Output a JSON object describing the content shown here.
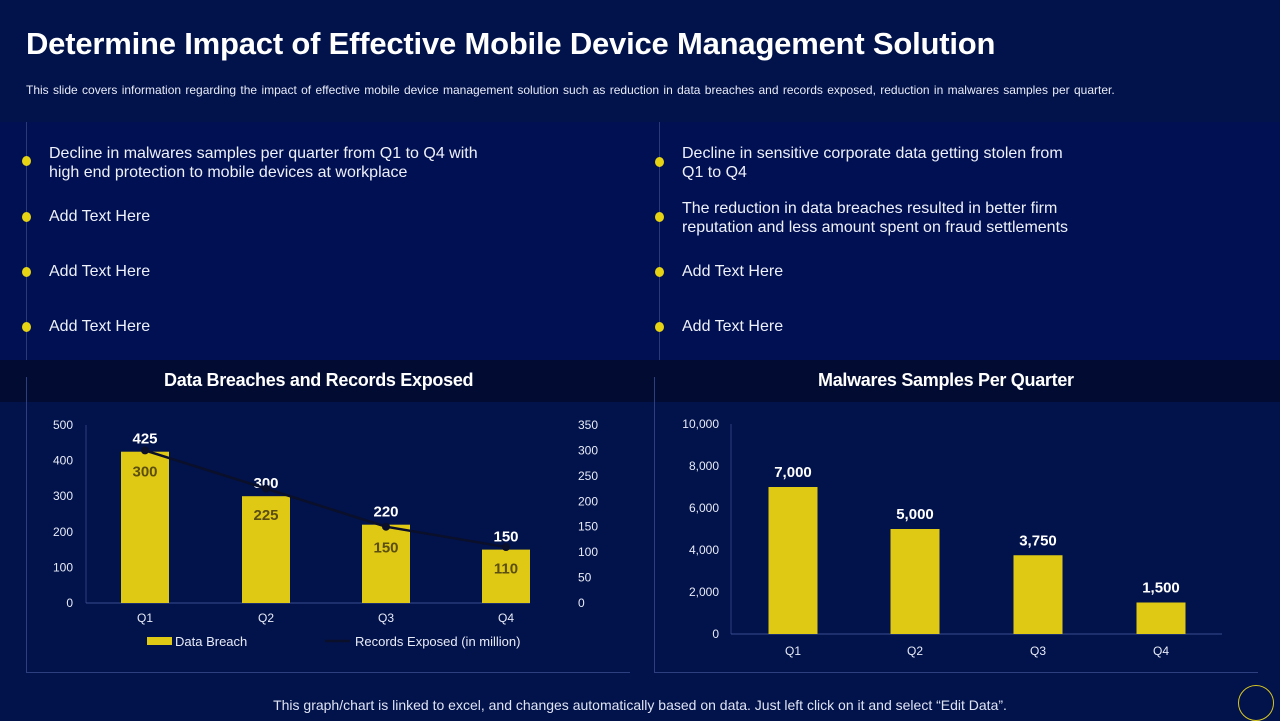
{
  "header": {
    "title": "Determine Impact of Effective Mobile Device Management Solution",
    "subtitle": "This slide covers information regarding the impact of effective  mobile device  management solution such as reduction in data breaches and records exposed, reduction in malwares  samples per quarter."
  },
  "bullets_left": [
    "Decline in malwares samples per quarter from Q1 to Q4 with high end protection to mobile devices at workplace",
    "Add Text Here",
    "Add Text Here",
    "Add Text Here"
  ],
  "bullets_right": [
    "Decline in sensitive corporate data getting stolen from Q1 to Q4",
    "The reduction in data breaches resulted in better firm reputation and less amount spent on fraud settlements",
    "Add Text Here",
    "Add Text Here"
  ],
  "colors": {
    "bar": "#e0c915",
    "line": "#0a0f2a",
    "background": "#02124a",
    "accent": "#e6d414"
  },
  "footer": "This graph/chart is linked to excel, and changes automatically based on data. Just left click on it and select “Edit Data”.",
  "chart_data": [
    {
      "type": "bar+line",
      "title": "Data Breaches and Records Exposed",
      "categories": [
        "Q1",
        "Q2",
        "Q3",
        "Q4"
      ],
      "series": [
        {
          "name": "Data Breach",
          "type": "bar",
          "axis": "left",
          "values": [
            425,
            300,
            220,
            150
          ]
        },
        {
          "name": "Records Exposed (in million)",
          "type": "line",
          "axis": "right",
          "values": [
            300,
            225,
            150,
            110
          ]
        }
      ],
      "ylim": [
        0,
        500
      ],
      "yticks": [
        0,
        100,
        200,
        300,
        400,
        500
      ],
      "y2lim": [
        0,
        350
      ],
      "y2ticks": [
        0,
        50,
        100,
        150,
        200,
        250,
        300,
        350
      ],
      "legend": "bottom",
      "grid": false
    },
    {
      "type": "bar",
      "title": "Malwares Samples Per Quarter",
      "categories": [
        "Q1",
        "Q2",
        "Q3",
        "Q4"
      ],
      "values": [
        7000,
        5000,
        3750,
        1500
      ],
      "value_labels": [
        "7,000",
        "5,000",
        "3,750",
        "1,500"
      ],
      "ylim": [
        0,
        10000
      ],
      "yticks": [
        "0",
        "2,000",
        "4,000",
        "6,000",
        "8,000",
        "10,000"
      ],
      "legend": "none",
      "grid": false
    }
  ]
}
